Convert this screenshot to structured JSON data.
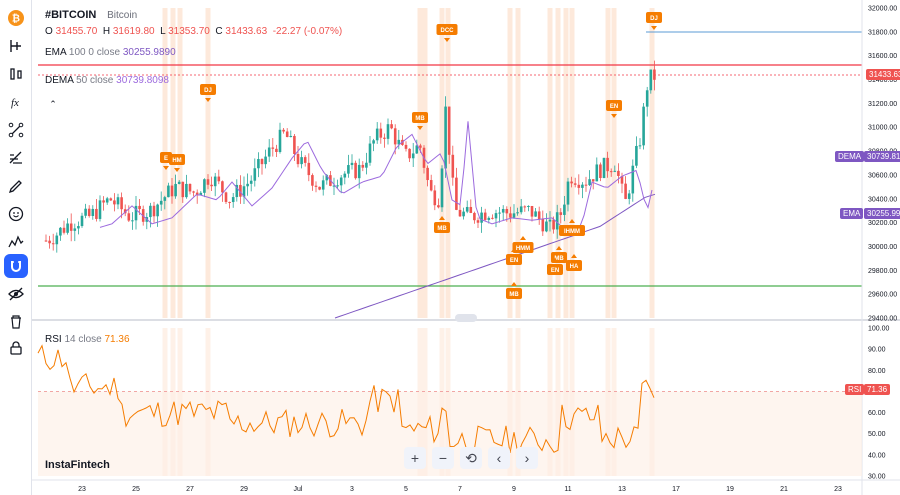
{
  "symbol": "#BITCOIN",
  "symbol_name": "Bitcoin",
  "ohlc": {
    "o_label": "O",
    "o": "31455.70",
    "h_label": "H",
    "h": "31619.80",
    "l_label": "L",
    "l": "31353.70",
    "c_label": "C",
    "c": "31433.63",
    "change": "-22.27 (-0.07%)"
  },
  "ema": {
    "name": "EMA",
    "params": "100 0 close",
    "value": "30255.9890"
  },
  "dema": {
    "name": "DEMA",
    "params": "50 close",
    "value": "30739.8098"
  },
  "rsi": {
    "name": "RSI",
    "params": "14 close",
    "value": "71.36"
  },
  "brand": "InstaFintech",
  "price_tags": {
    "last": "31433.63",
    "dema_label": "DEMA",
    "dema": "30739.81",
    "ema_label": "EMA",
    "ema": "30255.99",
    "rsi_label": "RSI",
    "rsi": "71.36"
  },
  "y_axis": [
    "32000.00",
    "31800.00",
    "31600.00",
    "31400.00",
    "31200.00",
    "31000.00",
    "30800.00",
    "30600.00",
    "30400.00",
    "30200.00",
    "30000.00",
    "29800.00",
    "29600.00",
    "29400.00"
  ],
  "rsi_axis": [
    "100.00",
    "90.00",
    "80.00",
    "70.00",
    "60.00",
    "50.00",
    "40.00",
    "30.00"
  ],
  "x_axis": [
    "23",
    "25",
    "27",
    "29",
    "Jul",
    "3",
    "5",
    "7",
    "9",
    "11",
    "13",
    "17",
    "19",
    "21",
    "23",
    "25"
  ],
  "patterns": [
    "E",
    "HM",
    "DJ",
    "MB",
    "DCC",
    "MB",
    "HMM",
    "EN",
    "MB",
    "MB",
    "EN",
    "IHMM",
    "HA",
    "EN",
    "DJ"
  ],
  "colors": {
    "up": "#26a69a",
    "down": "#ef5350",
    "ema": "#7e57c2",
    "dema": "#9c6ade",
    "resistance": "#f23645",
    "support": "#4caf50",
    "pattern": "#f57c00",
    "highlight": "#fde3d2",
    "accent": "#2962ff"
  },
  "chart_data": {
    "type": "candlestick",
    "x": [
      "23",
      "25",
      "27",
      "29",
      "Jul",
      "3",
      "5",
      "7",
      "9",
      "11",
      "13",
      "17",
      "19",
      "21",
      "23",
      "25"
    ],
    "ylim": [
      29400,
      32000
    ],
    "last_close": 31433.63,
    "ema_100_last": 30255.99,
    "dema_50_last": 30739.81,
    "rsi_14_last": 71.36,
    "rsi_ylim": [
      30,
      100
    ],
    "rsi_reference_level": 70
  },
  "toolbar_icons": [
    "bitcoin-icon",
    "cursor-icon",
    "lines-icon",
    "channel-icon",
    "fibonacci-icon",
    "measure-icon",
    "pen-icon",
    "emoji-icon",
    "pattern-icon",
    "magnet-icon",
    "hide-icon",
    "trash-icon",
    "lock-icon"
  ]
}
